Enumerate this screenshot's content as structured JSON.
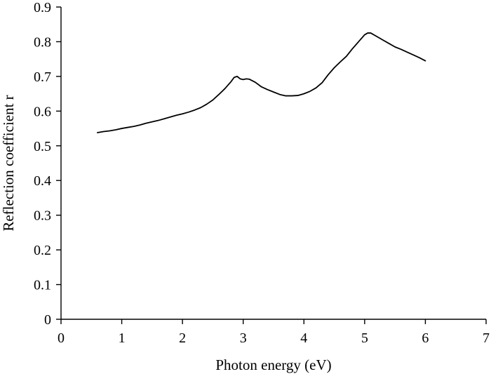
{
  "chart_data": {
    "type": "line",
    "title": "",
    "xlabel": "Photon energy (eV)",
    "ylabel": "Reflection coefficient r",
    "xlim": [
      0,
      7
    ],
    "ylim": [
      0,
      0.9
    ],
    "x_ticks": [
      0,
      1,
      2,
      3,
      4,
      5,
      6,
      7
    ],
    "y_ticks": [
      0,
      0.1,
      0.2,
      0.3,
      0.4,
      0.5,
      0.6,
      0.7,
      0.8,
      0.9
    ],
    "x_tick_labels": [
      "0",
      "1",
      "2",
      "3",
      "4",
      "5",
      "6",
      "7"
    ],
    "y_tick_labels": [
      "0",
      "0.1",
      "0.2",
      "0.3",
      "0.4",
      "0.5",
      "0.6",
      "0.7",
      "0.8",
      "0.9"
    ],
    "grid": false,
    "legend": "none",
    "line_color": "#000000",
    "series": [
      {
        "x": [
          0.6,
          0.7,
          0.8,
          0.9,
          1.0,
          1.1,
          1.2,
          1.3,
          1.4,
          1.5,
          1.6,
          1.7,
          1.8,
          1.9,
          2.0,
          2.1,
          2.2,
          2.3,
          2.4,
          2.5,
          2.6,
          2.7,
          2.8,
          2.85,
          2.9,
          2.95,
          3.0,
          3.05,
          3.1,
          3.2,
          3.3,
          3.4,
          3.5,
          3.6,
          3.7,
          3.8,
          3.9,
          4.0,
          4.1,
          4.2,
          4.3,
          4.4,
          4.5,
          4.6,
          4.7,
          4.8,
          4.9,
          5.0,
          5.05,
          5.1,
          5.2,
          5.3,
          5.4,
          5.5,
          5.6,
          5.7,
          5.8,
          5.9,
          6.0
        ],
        "y": [
          0.538,
          0.541,
          0.543,
          0.546,
          0.55,
          0.553,
          0.556,
          0.56,
          0.565,
          0.569,
          0.573,
          0.578,
          0.583,
          0.588,
          0.592,
          0.597,
          0.603,
          0.61,
          0.62,
          0.632,
          0.648,
          0.665,
          0.685,
          0.697,
          0.7,
          0.693,
          0.691,
          0.693,
          0.692,
          0.683,
          0.67,
          0.662,
          0.655,
          0.648,
          0.644,
          0.644,
          0.645,
          0.65,
          0.657,
          0.667,
          0.682,
          0.705,
          0.725,
          0.742,
          0.758,
          0.78,
          0.8,
          0.82,
          0.825,
          0.825,
          0.815,
          0.805,
          0.795,
          0.785,
          0.778,
          0.77,
          0.762,
          0.754,
          0.745
        ]
      }
    ]
  }
}
